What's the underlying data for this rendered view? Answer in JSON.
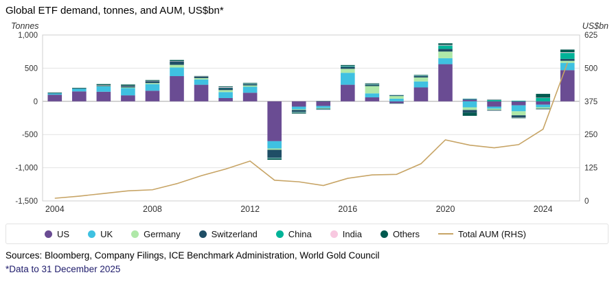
{
  "title": "Global ETF demand, tonnes, and AUM, US$bn*",
  "sources": "Sources: Bloomberg, Company Filings, ICE Benchmark Administration, World Gold Council",
  "footnote": "*Data to 31 December 2025",
  "axes": {
    "left_unit": "Tonnes",
    "right_unit": "US$bn"
  },
  "legend": [
    {
      "label": "US",
      "color": "#6A4C93",
      "marker": "circle"
    },
    {
      "label": "UK",
      "color": "#3FC1E1",
      "marker": "circle"
    },
    {
      "label": "Germany",
      "color": "#AFE8A8",
      "marker": "circle"
    },
    {
      "label": "Switzerland",
      "color": "#1F4E66",
      "marker": "circle"
    },
    {
      "label": "China",
      "color": "#00B398",
      "marker": "circle"
    },
    {
      "label": "India",
      "color": "#F8C8E0",
      "marker": "circle"
    },
    {
      "label": "Others",
      "color": "#00594F",
      "marker": "circle"
    },
    {
      "label": "Total AUM (RHS)",
      "color": "#C7A465",
      "marker": "line"
    }
  ],
  "chart_data": {
    "type": "bar",
    "stacked": true,
    "title": "Global ETF demand, tonnes, and AUM, US$bn*",
    "categories": [
      2004,
      2005,
      2006,
      2007,
      2008,
      2009,
      2010,
      2011,
      2012,
      2013,
      2014,
      2015,
      2016,
      2017,
      2018,
      2019,
      2020,
      2021,
      2022,
      2023,
      2024,
      2025
    ],
    "series": [
      {
        "name": "US",
        "color": "#6A4C93",
        "values": [
          100,
          150,
          145,
          90,
          160,
          380,
          250,
          50,
          130,
          -600,
          -80,
          -70,
          250,
          60,
          -30,
          210,
          560,
          30,
          -80,
          -60,
          -50,
          470
        ]
      },
      {
        "name": "UK",
        "color": "#3FC1E1",
        "values": [
          20,
          40,
          80,
          110,
          100,
          130,
          80,
          90,
          90,
          -110,
          -40,
          -30,
          180,
          60,
          40,
          90,
          90,
          -90,
          -30,
          -90,
          -40,
          110
        ]
      },
      {
        "name": "Germany",
        "color": "#AFE8A8",
        "values": [
          0,
          0,
          5,
          10,
          15,
          40,
          20,
          30,
          20,
          -20,
          -10,
          -10,
          60,
          110,
          40,
          60,
          100,
          -40,
          -20,
          -60,
          -20,
          30
        ]
      },
      {
        "name": "Switzerland",
        "color": "#1F4E66",
        "values": [
          5,
          5,
          10,
          20,
          30,
          50,
          20,
          30,
          20,
          -120,
          -30,
          -10,
          30,
          20,
          10,
          20,
          40,
          -40,
          -10,
          -30,
          -10,
          30
        ]
      },
      {
        "name": "China",
        "color": "#00B398",
        "values": [
          0,
          0,
          0,
          0,
          0,
          0,
          0,
          5,
          5,
          -5,
          -5,
          -5,
          10,
          5,
          5,
          5,
          50,
          10,
          20,
          10,
          50,
          90
        ]
      },
      {
        "name": "India",
        "color": "#F8C8E0",
        "values": [
          0,
          0,
          5,
          5,
          5,
          5,
          5,
          10,
          5,
          -5,
          -5,
          -5,
          5,
          5,
          5,
          5,
          10,
          5,
          5,
          -5,
          5,
          10
        ]
      },
      {
        "name": "Others",
        "color": "#00594F",
        "values": [
          8,
          8,
          15,
          18,
          11,
          18,
          7,
          10,
          9,
          -20,
          -14,
          5,
          12,
          11,
          -1,
          8,
          24,
          -48,
          5,
          -9,
          58,
          40
        ]
      }
    ],
    "line_series": {
      "name": "Total AUM (RHS)",
      "color": "#C7A465",
      "axis": "right",
      "values": [
        10,
        18,
        28,
        38,
        42,
        65,
        95,
        120,
        150,
        78,
        72,
        58,
        85,
        98,
        100,
        140,
        230,
        210,
        200,
        212,
        270,
        520
      ]
    },
    "left_axis": {
      "label": "Tonnes",
      "min": -1500,
      "max": 1000,
      "step": 500
    },
    "right_axis": {
      "label": "US$bn",
      "min": 0,
      "max": 625,
      "step": 125
    },
    "x_tick_labels": [
      2004,
      2008,
      2012,
      2016,
      2020,
      2024
    ],
    "grid": true,
    "legend_position": "bottom"
  }
}
